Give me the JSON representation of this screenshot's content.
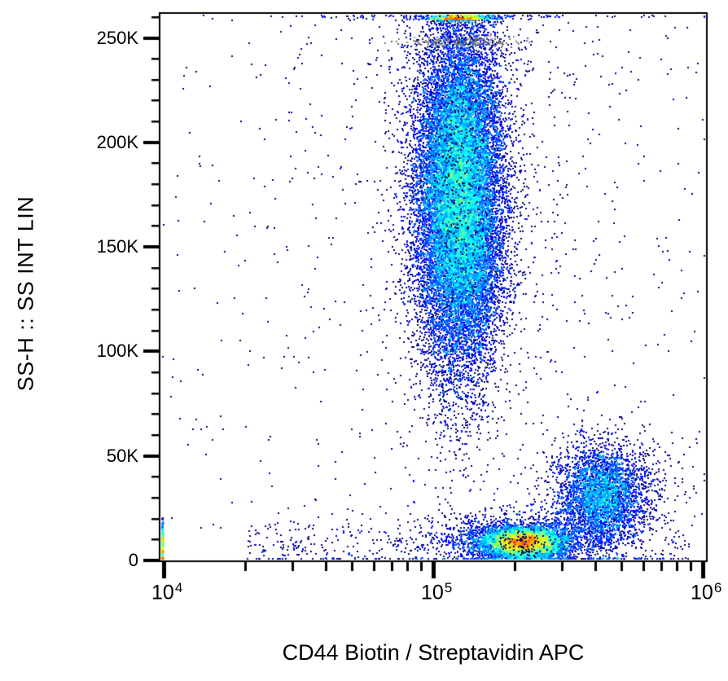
{
  "figure": {
    "background": "#ffffff",
    "frame_color": "#000000",
    "text_color": "#000000"
  },
  "chart_data": {
    "type": "scatter",
    "variant": "flow-cytometry pseudocolor density dot plot",
    "title": "",
    "xlabel": "CD44 Biotin / Streptavidin APC",
    "ylabel": "SS-H :: SS INT LIN",
    "x_scale": "log10",
    "x_log_domain": [
      3.988,
      6.012
    ],
    "x_major_ticks": [
      {
        "log10": 4,
        "base": "10",
        "exp": "4"
      },
      {
        "log10": 5,
        "base": "10",
        "exp": "5"
      },
      {
        "log10": 6,
        "base": "10",
        "exp": "6"
      }
    ],
    "x_minor_mantissas": [
      2,
      3,
      4,
      5,
      6,
      7,
      8,
      9
    ],
    "y_scale": "linear",
    "y_domain": [
      0,
      261500
    ],
    "y_major_ticks": [
      {
        "value": 0,
        "label": "0"
      },
      {
        "value": 50000,
        "label": "50K"
      },
      {
        "value": 100000,
        "label": "100K"
      },
      {
        "value": 150000,
        "label": "150K"
      },
      {
        "value": 200000,
        "label": "200K"
      },
      {
        "value": 250000,
        "label": "250K"
      }
    ],
    "y_minor_step": 10000,
    "grid": false,
    "legend": "none",
    "colormap": {
      "name": "jet",
      "meaning": "local event density",
      "low_color": "#000080",
      "high_color": "#ff0000"
    },
    "populations": [
      {
        "name": "main-ssc-high-cloud",
        "color_mode": "density",
        "n": 20000,
        "x_log_mean": 5.095,
        "x_log_sd": 0.082,
        "y_mean": 175000,
        "y_sd": 42000,
        "y_clip_mode": "pile_at_top",
        "description": "dense vertical cloud at CD44 ~1.2e5, SSC 90K-260K, green/yellow core"
      },
      {
        "name": "top-edge-pileup",
        "color_mode": "density",
        "n": 650,
        "x_log_mean": 5.09,
        "x_log_sd": 0.05,
        "y_mean": 259800,
        "y_sd": 700,
        "y_clip_mode": "pile_at_top",
        "description": "events clipped at SSC maximum, red/orange row under top frame"
      },
      {
        "name": "bottom-dense-cluster",
        "color_mode": "density",
        "n": 5200,
        "x_log_mean": 5.33,
        "x_log_sd": 0.075,
        "y_mean": 9000,
        "y_sd": 3600,
        "y_min": 800,
        "description": "hottest red horizontal cluster at CD44 ~2.1e5, SSC ~9K"
      },
      {
        "name": "bottom-cluster-fringe",
        "color_mode": "density",
        "n": 1500,
        "x_log_mean": 5.31,
        "x_log_sd": 0.17,
        "y_mean": 10000,
        "y_sd": 6500,
        "y_min": 400
      },
      {
        "name": "right-mid-cluster",
        "color_mode": "density",
        "n": 3000,
        "x_log_mean": 5.62,
        "x_log_sd": 0.08,
        "y_mean": 31000,
        "y_sd": 11000,
        "y_min": 800,
        "description": "green-core cluster at CD44 ~4.2e5, SSC ~30K"
      },
      {
        "name": "right-cluster-halo",
        "color_mode": "density",
        "n": 750,
        "x_log_mean": 5.63,
        "x_log_sd": 0.13,
        "y_mean": 33000,
        "y_sd": 17000,
        "y_min": 300
      },
      {
        "name": "left-edge-pileup",
        "color_mode": "density",
        "n": 260,
        "x_mode": "left_edge",
        "y_mean": 8000,
        "y_sd": 6000,
        "y_min": 300,
        "y_max_clip": 22000,
        "description": "events clipped at CD44 axis minimum"
      },
      {
        "name": "background-halo",
        "color_mode": "density",
        "n": 800,
        "x_log_mean": 5.1,
        "x_log_sd": 0.33,
        "y_mean": 170000,
        "y_sd": 75000
      },
      {
        "name": "background-uniform",
        "color_mode": "density",
        "n": 430,
        "x_mode": "uniform_log",
        "x_log_range": [
          3.99,
          6.01
        ],
        "y_mode": "uniform",
        "y_range": [
          0,
          261000
        ]
      },
      {
        "name": "bottom-band-scatter",
        "color_mode": "density",
        "n": 430,
        "x_mode": "uniform_log",
        "x_log_range": [
          4.3,
          5.95
        ],
        "y_mean": 8000,
        "y_sd": 6500,
        "y_min": 200
      },
      {
        "name": "aggregate-gray-band",
        "color_mode": "fixed",
        "color": "#787878",
        "jitter": 60,
        "n": 170,
        "x_log_mean": 5.1,
        "x_log_sd": 0.1,
        "y_mean": 248500,
        "y_sd": 1400,
        "description": "gray doublet band at SSC ~248K"
      },
      {
        "name": "pepper-dark-main",
        "color_mode": "fixed",
        "color": "#000066",
        "jitter": 40,
        "n": 500,
        "x_log_mean": 5.095,
        "x_log_sd": 0.08,
        "y_mean": 175000,
        "y_sd": 40000
      },
      {
        "name": "pepper-dark-bottom",
        "color_mode": "fixed",
        "color": "#000066",
        "jitter": 40,
        "n": 120,
        "x_log_mean": 5.33,
        "x_log_sd": 0.07,
        "y_mean": 9000,
        "y_sd": 3500,
        "y_min": 800
      },
      {
        "name": "pepper-dark-right",
        "color_mode": "fixed",
        "color": "#000066",
        "jitter": 40,
        "n": 60,
        "x_log_mean": 5.62,
        "x_log_sd": 0.08,
        "y_mean": 31000,
        "y_sd": 11000,
        "y_min": 800
      }
    ],
    "render": {
      "seed": 1234,
      "point_size": 2,
      "bin_size": 3,
      "density_scaling": "sqrt",
      "t_cap": 0.875
    }
  }
}
